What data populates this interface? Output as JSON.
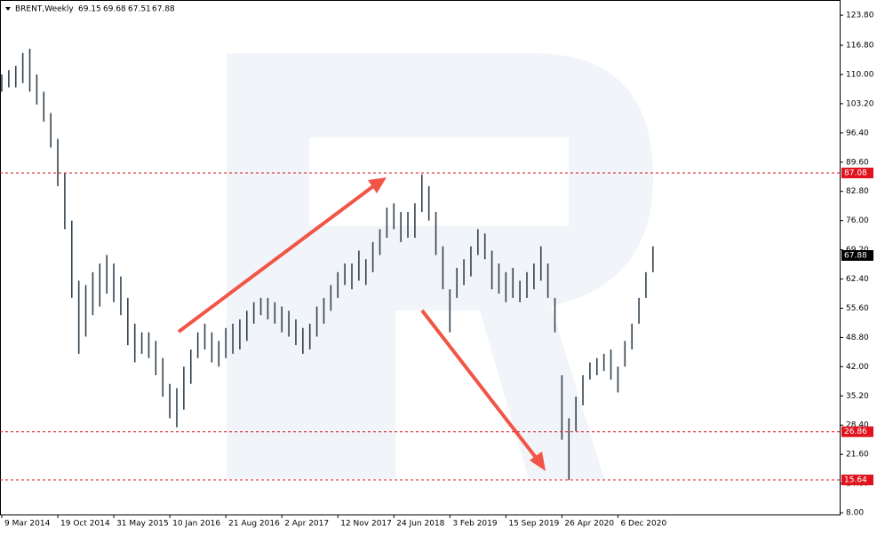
{
  "chart_data": {
    "type": "ohlc",
    "header": {
      "symbol": "BRENT,Weekly",
      "open": 69.15,
      "high": 69.68,
      "low": 67.51,
      "close": 67.88
    },
    "categories": [
      "9 Mar 2014",
      null,
      null,
      null,
      null,
      null,
      null,
      null,
      "19 Oct 2014",
      null,
      null,
      null,
      null,
      null,
      null,
      null,
      "31 May 2015",
      null,
      null,
      null,
      null,
      null,
      null,
      null,
      "10 Jan 2016",
      null,
      null,
      null,
      null,
      null,
      null,
      null,
      "21 Aug 2016",
      null,
      null,
      null,
      null,
      null,
      null,
      null,
      "2 Apr 2017",
      null,
      null,
      null,
      null,
      null,
      null,
      null,
      "12 Nov 2017",
      null,
      null,
      null,
      null,
      null,
      null,
      null,
      "24 Jun 2018",
      null,
      null,
      null,
      null,
      null,
      null,
      null,
      "3 Feb 2019",
      null,
      null,
      null,
      null,
      null,
      null,
      null,
      "15 Sep 2019",
      null,
      null,
      null,
      null,
      null,
      null,
      null,
      "26 Apr 2020",
      null,
      null,
      null,
      null,
      null,
      null,
      null,
      "6 Dec 2020",
      null,
      null,
      null,
      null,
      null
    ],
    "high": [
      110,
      111,
      112,
      115,
      116,
      110,
      106,
      101,
      95,
      87,
      76,
      62,
      61,
      64,
      66,
      68,
      66,
      63,
      58,
      52,
      50,
      50,
      48,
      44,
      38,
      37,
      42,
      46,
      50,
      52,
      50,
      48,
      51,
      52,
      53,
      55,
      57,
      58,
      58,
      57,
      56,
      55,
      53,
      51,
      52,
      56,
      58,
      61,
      64,
      66,
      66,
      69,
      67,
      71,
      74,
      79,
      80,
      78,
      78,
      80,
      86.7,
      84,
      78,
      70,
      60,
      65,
      67,
      70,
      74,
      73,
      69,
      66,
      64,
      65,
      62,
      64,
      66,
      70,
      66,
      58,
      40,
      30,
      35,
      40,
      43,
      44,
      45,
      46,
      42,
      48,
      52,
      58,
      64,
      70
    ],
    "low": [
      106,
      107,
      107,
      108,
      106,
      103,
      99,
      93,
      84,
      74,
      58,
      45,
      49,
      54,
      56,
      59,
      57,
      54,
      47,
      43,
      45,
      44,
      40,
      35,
      30,
      27.9,
      32,
      38,
      44,
      46,
      43,
      42,
      44,
      45,
      46,
      48,
      52,
      54,
      53,
      52,
      50,
      49,
      47,
      45,
      46,
      49,
      52,
      55,
      58,
      61,
      60,
      62,
      61,
      64,
      68,
      72,
      74,
      71,
      72,
      72,
      78,
      76,
      68,
      60,
      50,
      58,
      61,
      63,
      68,
      67,
      60,
      59,
      57,
      58,
      57,
      58,
      60,
      62,
      58,
      50,
      25,
      15.6,
      27,
      33,
      39,
      40,
      41,
      39,
      36,
      42,
      46,
      52,
      58,
      64
    ],
    "color": "#34424e",
    "ylim": [
      7.6,
      126.3
    ],
    "yticks": [
      {
        "value": 123.8,
        "label": "123.80"
      },
      {
        "value": 116.8,
        "label": "116.80"
      },
      {
        "value": 110,
        "label": "110.00"
      },
      {
        "value": 103.2,
        "label": "103.20"
      },
      {
        "value": 96.4,
        "label": "96.40"
      },
      {
        "value": 89.6,
        "label": "89.60"
      },
      {
        "value": 82.8,
        "label": "82.80"
      },
      {
        "value": 76,
        "label": "76.00"
      },
      {
        "value": 69.2,
        "label": "69.20"
      },
      {
        "value": 62.4,
        "label": "62.40"
      },
      {
        "value": 55.6,
        "label": "55.60"
      },
      {
        "value": 48.8,
        "label": "48.80"
      },
      {
        "value": 42,
        "label": "42.00"
      },
      {
        "value": 35.2,
        "label": "35.20"
      },
      {
        "value": 28.4,
        "label": "28.40"
      },
      {
        "value": 21.6,
        "label": "21.60"
      },
      {
        "value": 14.8,
        "label": "14.80"
      },
      {
        "value": 8,
        "label": "8.00"
      }
    ],
    "levels": [
      87.08,
      26.86,
      15.64
    ],
    "level_color": "#e0141e",
    "last_price": 67.88,
    "grid": false
  }
}
